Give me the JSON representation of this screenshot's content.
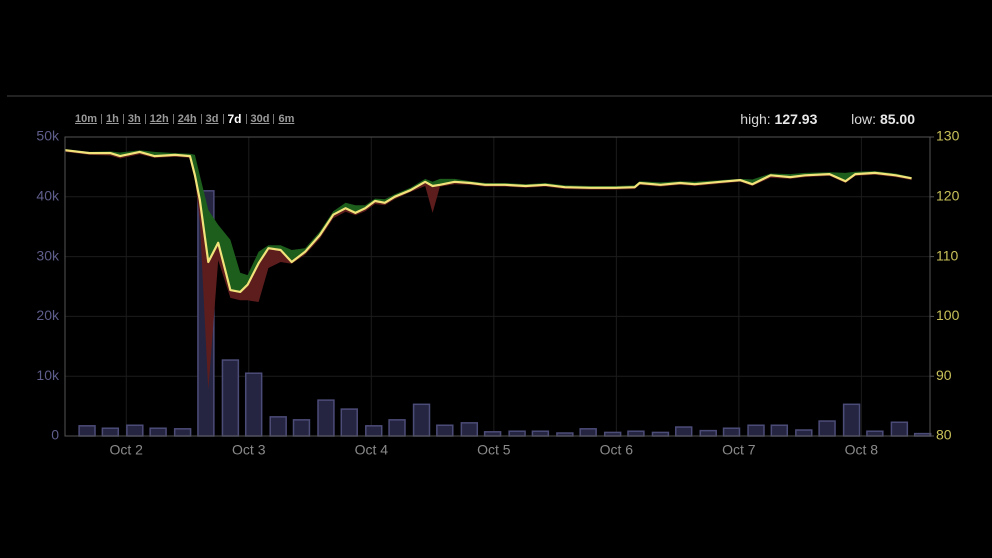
{
  "ranges": [
    "10m",
    "1h",
    "3h",
    "12h",
    "24h",
    "3d",
    "7d",
    "30d",
    "6m"
  ],
  "active_range_index": 6,
  "summary": {
    "high_label": "high:",
    "high": "127.93",
    "low_label": "low:",
    "low": "85.00"
  },
  "chart_data": [
    {
      "type": "bar",
      "x": [
        1.68,
        1.87,
        2.07,
        2.26,
        2.46,
        2.65,
        2.85,
        3.04,
        3.24,
        3.43,
        3.63,
        3.82,
        4.02,
        4.21,
        4.41,
        4.6,
        4.8,
        4.99,
        5.19,
        5.38,
        5.58,
        5.77,
        5.97,
        6.16,
        6.36,
        6.55,
        6.75,
        6.94,
        7.14,
        7.33,
        7.53,
        7.72,
        7.92,
        8.11,
        8.31,
        8.5
      ],
      "values": [
        1700,
        1300,
        1800,
        1300,
        1200,
        41000,
        12700,
        10500,
        3200,
        2700,
        6000,
        4500,
        1700,
        2700,
        5300,
        1800,
        2200,
        700,
        800,
        800,
        500,
        1200,
        600,
        800,
        600,
        1500,
        900,
        1300,
        1800,
        1800,
        1000,
        2500,
        5300,
        800,
        2300,
        400
      ],
      "color": "#252541",
      "edge_color": "#4c4c78",
      "xlim": [
        1.5,
        8.56
      ],
      "xticks": [
        {
          "value": 2,
          "label": "Oct 2"
        },
        {
          "value": 3,
          "label": "Oct 3"
        },
        {
          "value": 4,
          "label": "Oct 4"
        },
        {
          "value": 5,
          "label": "Oct 5"
        },
        {
          "value": 6,
          "label": "Oct 6"
        },
        {
          "value": 7,
          "label": "Oct 7"
        },
        {
          "value": 8,
          "label": "Oct 8"
        }
      ],
      "ylim": [
        0,
        50000
      ],
      "yticks": [
        0,
        {
          "value": 10000,
          "label": "10k"
        },
        {
          "value": 20000,
          "label": "20k"
        },
        {
          "value": 30000,
          "label": "30k"
        },
        {
          "value": 40000,
          "label": "40k"
        },
        {
          "value": 50000,
          "label": "50k"
        }
      ],
      "grid": true
    },
    {
      "type": "price-band",
      "axis": "y2",
      "x": [
        1.5,
        1.7,
        1.87,
        1.95,
        2.11,
        2.23,
        2.4,
        2.52,
        2.56,
        2.6,
        2.67,
        2.75,
        2.85,
        2.93,
        2.99,
        3.08,
        3.16,
        3.26,
        3.35,
        3.46,
        3.58,
        3.69,
        3.79,
        3.87,
        3.95,
        4.03,
        4.11,
        4.19,
        4.32,
        4.44,
        4.5,
        4.56,
        4.68,
        4.81,
        4.93,
        5.09,
        5.26,
        5.42,
        5.58,
        5.79,
        5.99,
        6.15,
        6.19,
        6.36,
        6.52,
        6.64,
        6.85,
        7.01,
        7.11,
        7.26,
        7.42,
        7.54,
        7.74,
        7.87,
        7.95,
        8.11,
        8.28,
        8.41
      ],
      "price": {
        "color": "#f2e27a",
        "values": [
          127.8,
          127.3,
          127.3,
          126.8,
          127.5,
          126.8,
          127.0,
          126.8,
          123.6,
          119.5,
          109.1,
          112.3,
          104.4,
          104.1,
          105.3,
          108.9,
          111.4,
          111.1,
          109.1,
          110.8,
          113.6,
          117.0,
          118.1,
          117.3,
          118.1,
          119.3,
          119.0,
          120.0,
          121.1,
          122.5,
          121.8,
          122.0,
          122.5,
          122.3,
          122.0,
          122.0,
          121.8,
          122.0,
          121.6,
          121.5,
          121.5,
          121.6,
          122.3,
          122.0,
          122.3,
          122.1,
          122.5,
          122.8,
          122.1,
          123.6,
          123.3,
          123.6,
          123.8,
          122.6,
          123.8,
          124.0,
          123.6,
          123.1
        ]
      },
      "high": {
        "color": "#1d5e1d",
        "values": [
          128.0,
          127.5,
          127.6,
          127.4,
          127.8,
          127.5,
          127.3,
          127.2,
          127.0,
          123.6,
          117.8,
          115.3,
          112.8,
          107.3,
          106.9,
          110.8,
          111.9,
          111.9,
          111.1,
          111.4,
          114.2,
          117.6,
          119.0,
          118.6,
          118.6,
          119.7,
          119.6,
          120.4,
          121.5,
          123.0,
          122.5,
          123.0,
          123.0,
          122.6,
          122.3,
          122.3,
          122.1,
          122.3,
          121.9,
          121.8,
          121.8,
          121.9,
          122.6,
          122.4,
          122.6,
          122.5,
          122.8,
          123.0,
          122.9,
          123.9,
          123.8,
          124.0,
          124.1,
          124.0,
          124.2,
          124.3,
          123.9,
          123.3
        ]
      },
      "low": {
        "color": "#5e1d1d",
        "values": [
          127.5,
          127.0,
          126.9,
          126.4,
          127.1,
          126.5,
          126.7,
          126.5,
          123.0,
          116.1,
          87.7,
          109.4,
          103.1,
          102.7,
          102.7,
          102.4,
          108.1,
          109.1,
          108.8,
          110.3,
          113.0,
          116.4,
          117.5,
          116.9,
          117.6,
          118.8,
          118.6,
          119.6,
          120.8,
          121.8,
          117.3,
          121.7,
          122.1,
          122.0,
          121.7,
          121.7,
          121.5,
          121.7,
          121.3,
          121.2,
          121.2,
          121.3,
          122.0,
          121.7,
          122.0,
          121.8,
          122.2,
          122.5,
          121.8,
          123.2,
          123.0,
          123.3,
          123.5,
          122.3,
          123.5,
          123.7,
          123.3,
          122.8
        ]
      },
      "y2lim": [
        80,
        130
      ],
      "y2ticks": [
        80,
        90,
        100,
        110,
        120,
        130
      ]
    }
  ]
}
